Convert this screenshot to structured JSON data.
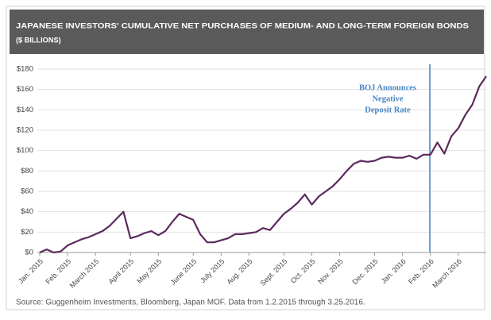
{
  "chart_data": {
    "type": "line",
    "title": "JAPANESE INVESTORS' CUMULATIVE NET PURCHASES OF MEDIUM- AND LONG-TERM FOREIGN BONDS",
    "subtitle": "($ BILLIONS)",
    "categories": [
      "Jan. 2015",
      null,
      null,
      null,
      "Feb. 2015",
      null,
      null,
      null,
      "March 2015",
      null,
      null,
      null,
      null,
      "April 2015",
      null,
      null,
      null,
      "May 2015",
      null,
      null,
      null,
      null,
      "June 2015",
      null,
      null,
      null,
      "July 2015",
      null,
      null,
      null,
      "Aug. 2015",
      null,
      null,
      null,
      null,
      "Sept. 2015",
      null,
      null,
      null,
      "Oct. 2015",
      null,
      null,
      null,
      "Nov. 2015",
      null,
      null,
      null,
      null,
      "Dec. 2015",
      null,
      null,
      null,
      "Jan. 2016",
      null,
      null,
      null,
      "Feb. 2016",
      null,
      null,
      null,
      "March 2016",
      null,
      null,
      null,
      null
    ],
    "series": [
      {
        "color": "#5b2a5e",
        "values": [
          0,
          3,
          0,
          1,
          7,
          10,
          13,
          15,
          18,
          21,
          26,
          33,
          40,
          14,
          16,
          19,
          21,
          17,
          21,
          30,
          38,
          35,
          32,
          18,
          10,
          10,
          12,
          14,
          18,
          18,
          19,
          20,
          24,
          22,
          30,
          38,
          43,
          49,
          57,
          47,
          55,
          60,
          65,
          72,
          80,
          87,
          90,
          89,
          90,
          93,
          94,
          93,
          93,
          95,
          92,
          96,
          96,
          108,
          97,
          114,
          122,
          135,
          145,
          163,
          173
        ]
      }
    ],
    "ylim": [
      0,
      180
    ],
    "yticks": [
      {
        "value": 0,
        "label": "$0"
      },
      {
        "value": 20,
        "label": "$20"
      },
      {
        "value": 40,
        "label": "$40"
      },
      {
        "value": 60,
        "label": "$60"
      },
      {
        "value": 80,
        "label": "$80"
      },
      {
        "value": 100,
        "label": "$100"
      },
      {
        "value": 120,
        "label": "$120"
      },
      {
        "value": 140,
        "label": "$140"
      },
      {
        "value": 160,
        "label": "$160"
      },
      {
        "value": 180,
        "label": "$180"
      }
    ],
    "grid": true,
    "annotation": [
      "BOJ Announces",
      "Negative",
      "Deposit Rate"
    ],
    "source": "Source: Guggenheim Investments, Bloomberg, Japan MOF. Data from 1.2.2015 through 3.25.2016."
  }
}
